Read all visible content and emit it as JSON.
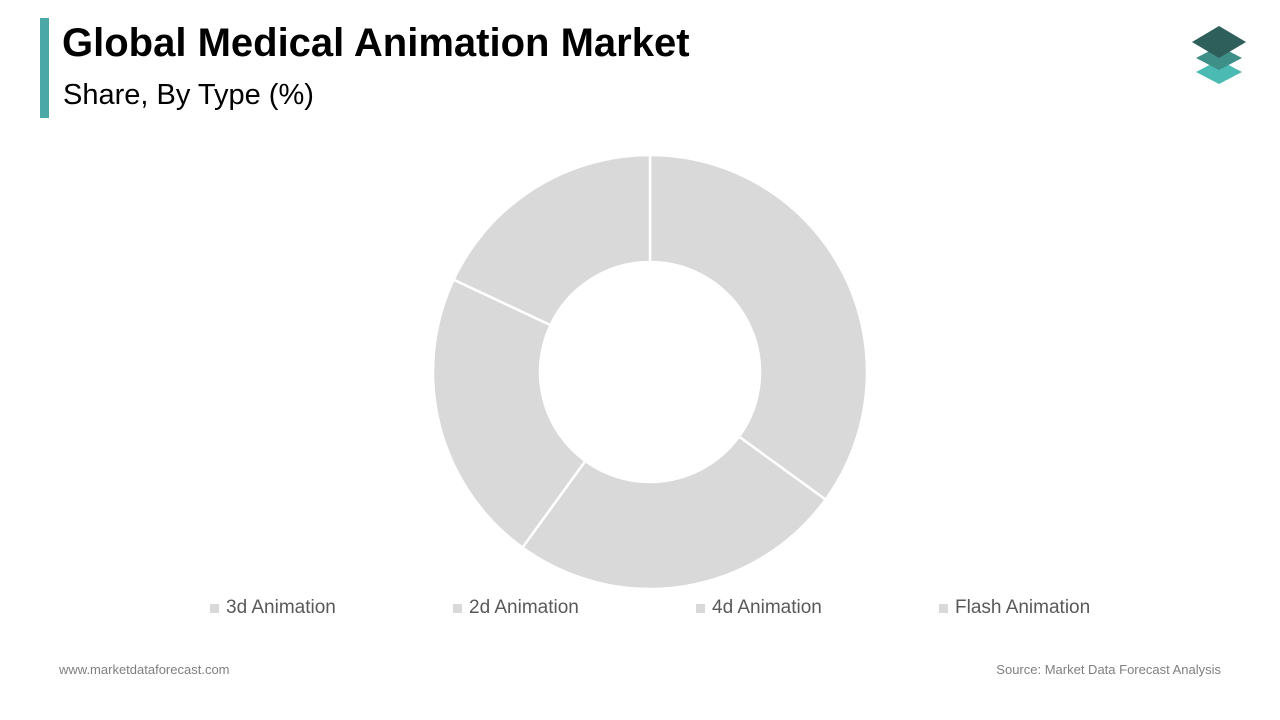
{
  "header": {
    "title": "Global Medical Animation Market",
    "subtitle": "Share, By Type (%)",
    "accent_color": "#4aa9a7"
  },
  "logo": {
    "icon": "stacked-layers-icon",
    "colors": [
      "#2e5f5a",
      "#3d8f88",
      "#4bbab3"
    ]
  },
  "chart_data": {
    "type": "pie",
    "variant": "donut",
    "title": "Share, By Type (%)",
    "categories": [
      "3d Animation",
      "2d Animation",
      "4d Animation",
      "Flash Animation"
    ],
    "values": [
      35,
      25,
      22,
      18
    ],
    "unit": "%",
    "slice_color": "#d9d9d9",
    "separator_color": "#ffffff",
    "legend_position": "bottom",
    "data_labels": false
  },
  "footer": {
    "website": "www.marketdataforecast.com",
    "source": "Source: Market Data Forecast Analysis"
  }
}
